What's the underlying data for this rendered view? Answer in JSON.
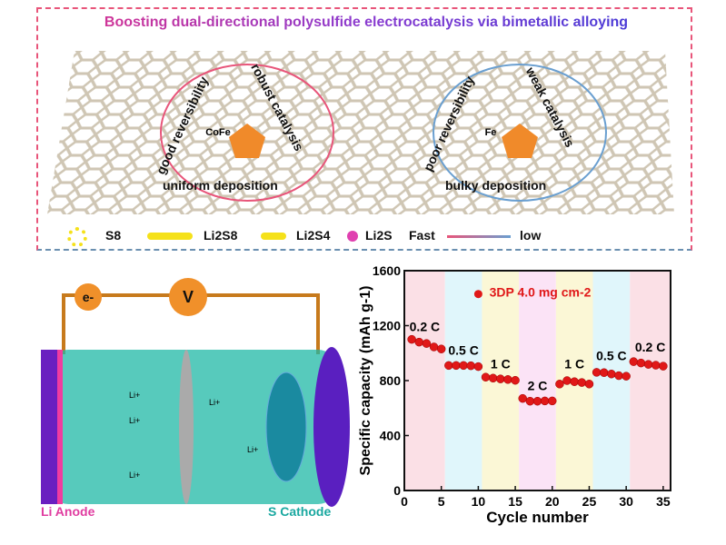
{
  "top_panel": {
    "title": "Boosting dual-directional polysulfide electrocatalysis via bimetallic alloying",
    "left": {
      "center": "CoFe",
      "labels": [
        "good reversibility",
        "robust catalysis",
        "uniform deposition"
      ]
    },
    "right": {
      "center": "Fe",
      "labels": [
        "poor reversibility",
        "weak catalysis",
        "bulky deposition"
      ]
    },
    "legend": {
      "s8": "S8",
      "li2s8": "Li2S8",
      "li2s4": "Li2S4",
      "li2s": "Li2S",
      "fast": "Fast",
      "low": "low"
    },
    "colors": {
      "fast": "#e8557a",
      "low": "#6a9fd0",
      "sulfur": "#f5e11a",
      "lithium": "#e040b0"
    }
  },
  "battery": {
    "electron": "e-",
    "voltmeter": "V",
    "ion": "Li+",
    "anode": "Li Anode",
    "cathode": "S Cathode"
  },
  "chart_data": {
    "type": "scatter",
    "xlabel": "Cycle number",
    "ylabel": "Specific capacity (mAh g-1)",
    "xlim": [
      0,
      36
    ],
    "ylim": [
      0,
      1600
    ],
    "xticks": [
      0,
      5,
      10,
      15,
      20,
      25,
      30,
      35
    ],
    "yticks": [
      0,
      400,
      800,
      1200,
      1600
    ],
    "legend": "3DP 4.0 mg cm-2",
    "series": [
      {
        "name": "3DP 4.0 mg cm-2",
        "x": [
          1,
          2,
          3,
          4,
          5,
          6,
          7,
          8,
          9,
          10,
          11,
          12,
          13,
          14,
          15,
          16,
          17,
          18,
          19,
          20,
          21,
          22,
          23,
          24,
          25,
          26,
          27,
          28,
          29,
          30,
          31,
          32,
          33,
          34,
          35
        ],
        "y": [
          1100,
          1080,
          1070,
          1045,
          1030,
          910,
          910,
          910,
          908,
          902,
          825,
          818,
          812,
          808,
          802,
          670,
          650,
          650,
          652,
          652,
          775,
          800,
          792,
          786,
          775,
          860,
          858,
          848,
          836,
          832,
          938,
          928,
          918,
          912,
          905
        ]
      }
    ],
    "rate_regions": [
      {
        "label": "0.2 C",
        "range": [
          0,
          5.5
        ],
        "color": "#fbe0e6"
      },
      {
        "label": "0.5 C",
        "range": [
          5.5,
          10.5
        ],
        "color": "#e0f6fb"
      },
      {
        "label": "1 C",
        "range": [
          10.5,
          15.5
        ],
        "color": "#fbf7d6"
      },
      {
        "label": "2 C",
        "range": [
          15.5,
          20.5
        ],
        "color": "#fbe3f6"
      },
      {
        "label": "1 C",
        "range": [
          20.5,
          25.5
        ],
        "color": "#fbf7d6"
      },
      {
        "label": "0.5 C",
        "range": [
          25.5,
          30.5
        ],
        "color": "#e0f6fb"
      },
      {
        "label": "0.2 C",
        "range": [
          30.5,
          36
        ],
        "color": "#fbe0e6"
      }
    ]
  }
}
